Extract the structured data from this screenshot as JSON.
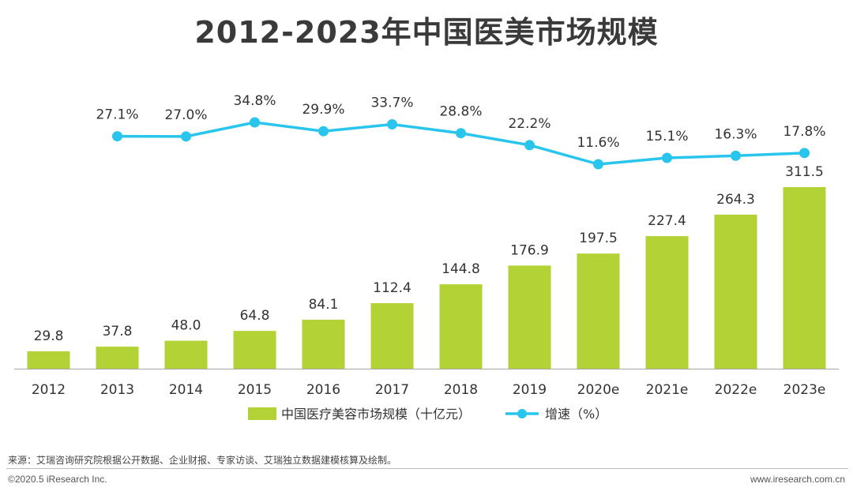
{
  "chart_data": {
    "type": "bar+line",
    "title": "2012-2023年中国医美市场规模",
    "categories": [
      "2012",
      "2013",
      "2014",
      "2015",
      "2016",
      "2017",
      "2018",
      "2019",
      "2020e",
      "2021e",
      "2022e",
      "2023e"
    ],
    "series": [
      {
        "name": "中国医疗美容市场规模（十亿元）",
        "type": "bar",
        "color": "#b2d235",
        "values": [
          29.8,
          37.8,
          48.0,
          64.8,
          84.1,
          112.4,
          144.8,
          176.9,
          197.5,
          227.4,
          264.3,
          311.5
        ],
        "labels": [
          "29.8",
          "37.8",
          "48.0",
          "64.8",
          "84.1",
          "112.4",
          "144.8",
          "176.9",
          "197.5",
          "227.4",
          "264.3",
          "311.5"
        ]
      },
      {
        "name": "增速（%）",
        "type": "line",
        "color": "#29c5ec",
        "values": [
          null,
          27.1,
          27.0,
          34.8,
          29.9,
          33.7,
          28.8,
          22.2,
          11.6,
          15.1,
          16.3,
          17.8
        ],
        "labels": [
          null,
          "27.1%",
          "27.0%",
          "34.8%",
          "29.9%",
          "33.7%",
          "28.8%",
          "22.2%",
          "11.6%",
          "15.1%",
          "16.3%",
          "17.8%"
        ]
      }
    ],
    "bar_ylim": [
      0,
      311.5
    ],
    "line_ylim": [
      11.6,
      34.8
    ],
    "grid": false,
    "legend": "bottom-center"
  },
  "footer": {
    "source": "来源：艾瑞咨询研究院根据公开数据、企业财报、专家访谈、艾瑞独立数据建模核算及绘制。",
    "copyright": "©2020.5 iResearch Inc.",
    "site": "www.iresearch.com.cn"
  }
}
